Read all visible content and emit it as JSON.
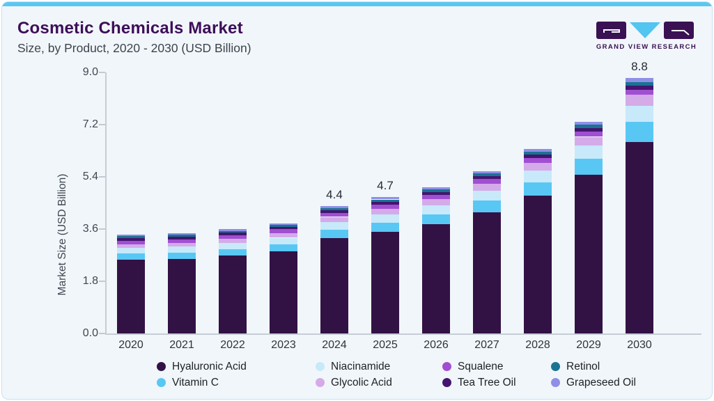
{
  "header": {
    "title": "Cosmetic Chemicals Market",
    "subtitle": "Size, by Product, 2020 - 2030 (USD Billion)"
  },
  "logo": {
    "brand": "GRAND VIEW RESEARCH"
  },
  "colors": {
    "accent_strip": "#5bc6f2",
    "card_bg": "#f1f6fa",
    "title": "#3e0e59",
    "axis": "#c7cdd5"
  },
  "chart_data": {
    "type": "bar",
    "stacked": true,
    "title": "Cosmetic Chemicals Market Size, by Product, 2020 - 2030 (USD Billion)",
    "xlabel": "",
    "ylabel": "Market Size (USD Billion)",
    "ylim": [
      0,
      9.0
    ],
    "yticks": [
      0.0,
      1.8,
      3.6,
      5.4,
      7.2,
      9.0
    ],
    "ytick_labels": [
      "0.0",
      "1.8",
      "3.6",
      "5.4",
      "7.2",
      "9.0"
    ],
    "grid": false,
    "legend_position": "bottom",
    "categories": [
      "2020",
      "2021",
      "2022",
      "2023",
      "2024",
      "2025",
      "2026",
      "2027",
      "2028",
      "2029",
      "2030"
    ],
    "series": [
      {
        "name": "Hyaluronic Acid",
        "color": "#321245",
        "values": [
          2.55,
          2.58,
          2.69,
          2.83,
          3.28,
          3.5,
          3.76,
          4.18,
          4.75,
          5.47,
          6.6
        ]
      },
      {
        "name": "Vitamin C",
        "color": "#59c7f4",
        "values": [
          0.2,
          0.21,
          0.22,
          0.24,
          0.29,
          0.32,
          0.35,
          0.4,
          0.46,
          0.55,
          0.7
        ]
      },
      {
        "name": "Niacinamide",
        "color": "#c7e9fa",
        "values": [
          0.2,
          0.2,
          0.21,
          0.23,
          0.27,
          0.29,
          0.31,
          0.35,
          0.4,
          0.45,
          0.54
        ]
      },
      {
        "name": "Glycolic Acid",
        "color": "#d4abe8",
        "values": [
          0.13,
          0.14,
          0.15,
          0.16,
          0.18,
          0.19,
          0.21,
          0.23,
          0.27,
          0.31,
          0.39
        ]
      },
      {
        "name": "Squalene",
        "color": "#a14fd2",
        "values": [
          0.12,
          0.12,
          0.12,
          0.13,
          0.14,
          0.15,
          0.15,
          0.16,
          0.16,
          0.17,
          0.17
        ]
      },
      {
        "name": "Tea Tree Oil",
        "color": "#44156e",
        "values": [
          0.08,
          0.08,
          0.08,
          0.08,
          0.09,
          0.09,
          0.1,
          0.11,
          0.12,
          0.13,
          0.15
        ]
      },
      {
        "name": "Retinol",
        "color": "#1a7392",
        "values": [
          0.07,
          0.07,
          0.07,
          0.07,
          0.08,
          0.08,
          0.09,
          0.09,
          0.1,
          0.11,
          0.12
        ]
      },
      {
        "name": "Grapeseed Oil",
        "color": "#8f8fe8",
        "values": [
          0.05,
          0.05,
          0.06,
          0.06,
          0.07,
          0.08,
          0.08,
          0.08,
          0.09,
          0.11,
          0.13
        ]
      }
    ],
    "totals": [
      3.4,
      3.45,
      3.6,
      3.8,
      4.4,
      4.7,
      5.05,
      5.6,
      6.35,
      7.3,
      8.8
    ],
    "bar_labels": {
      "2024": "4.4",
      "2025": "4.7",
      "2030": "8.8"
    }
  },
  "legend": {
    "rows": [
      [
        {
          "label": "Hyaluronic Acid",
          "color": "#321245"
        },
        {
          "label": "Niacinamide",
          "color": "#c7e9fa"
        },
        {
          "label": "Squalene",
          "color": "#a14fd2"
        },
        {
          "label": "Retinol",
          "color": "#1a7392"
        }
      ],
      [
        {
          "label": "Vitamin C",
          "color": "#59c7f4"
        },
        {
          "label": "Glycolic Acid",
          "color": "#d4abe8"
        },
        {
          "label": "Tea Tree Oil",
          "color": "#44156e"
        },
        {
          "label": "Grapeseed Oil",
          "color": "#8f8fe8"
        }
      ]
    ]
  }
}
